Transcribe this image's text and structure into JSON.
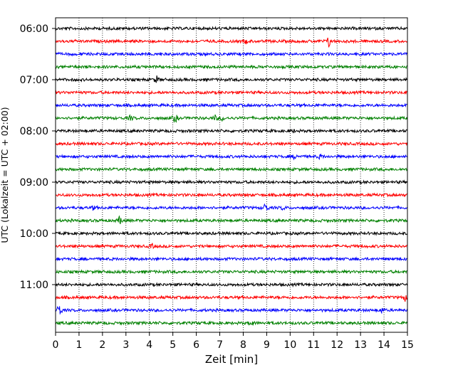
{
  "chart_data": {
    "type": "line",
    "title": "",
    "xlabel": "Zeit  [min]",
    "ylabel": "UTC (Lokalzeit = UTC + 02:00)",
    "xlim": [
      0,
      15
    ],
    "x_ticks": [
      0,
      1,
      2,
      3,
      4,
      5,
      6,
      7,
      8,
      9,
      10,
      11,
      12,
      13,
      14,
      15
    ],
    "y_tick_labels": [
      "06:00",
      "07:00",
      "08:00",
      "09:00",
      "10:00",
      "11:00"
    ],
    "grid": "vertical dotted",
    "trace_colors": [
      "#000000",
      "#ff0000",
      "#0000ff",
      "#008000"
    ],
    "traces_start_utc": "06:00",
    "trace_interval_min": 15,
    "trace_count": 24,
    "events": [
      {
        "trace": 1,
        "t": 11.65,
        "amp": 1.0
      },
      {
        "trace": 1,
        "t": 8.1,
        "amp": 0.35
      },
      {
        "trace": 4,
        "t": 4.3,
        "amp": 0.6
      },
      {
        "trace": 7,
        "t": 3.2,
        "amp": 0.5
      },
      {
        "trace": 7,
        "t": 5.1,
        "amp": 1.0
      },
      {
        "trace": 7,
        "t": 6.8,
        "amp": 0.4
      },
      {
        "trace": 7,
        "t": 7.1,
        "amp": 0.4
      },
      {
        "trace": 8,
        "t": 10.1,
        "amp": 0.3
      },
      {
        "trace": 10,
        "t": 10.2,
        "amp": 0.45
      },
      {
        "trace": 10,
        "t": 11.3,
        "amp": 0.45
      },
      {
        "trace": 14,
        "t": 1.6,
        "amp": 0.35
      },
      {
        "trace": 14,
        "t": 8.95,
        "amp": 1.0
      },
      {
        "trace": 14,
        "t": 9.7,
        "amp": 0.35
      },
      {
        "trace": 15,
        "t": 2.75,
        "amp": 0.8
      },
      {
        "trace": 17,
        "t": 4.1,
        "amp": 0.45
      },
      {
        "trace": 21,
        "t": 14.9,
        "amp": 0.5
      },
      {
        "trace": 22,
        "t": 0.15,
        "amp": 1.4
      },
      {
        "trace": 22,
        "t": 13.9,
        "amp": 0.35
      },
      {
        "trace": 23,
        "t": 8.35,
        "amp": 0.6
      }
    ]
  }
}
